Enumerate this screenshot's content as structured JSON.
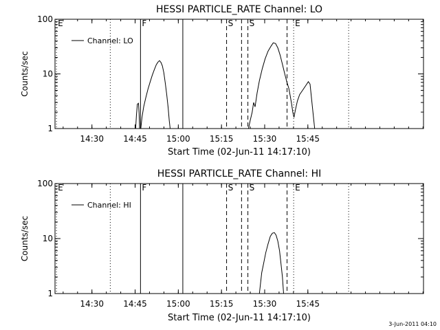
{
  "footer": {
    "timestamp": "3-Jun-2011 04:10"
  },
  "chart_data": [
    {
      "type": "line",
      "title": "HESSI PARTICLE_RATE Channel: LO",
      "xlabel": "Start Time (02-Jun-11 14:17:10)",
      "ylabel": "Counts/sec",
      "x_units": "minutes after 14:17:10",
      "xlim": [
        0,
        128
      ],
      "ylim": [
        1,
        100
      ],
      "log_y": true,
      "x_ticks": [
        {
          "value": 12.83,
          "label": "14:30"
        },
        {
          "value": 27.83,
          "label": "14:45"
        },
        {
          "value": 42.83,
          "label": "15:00"
        },
        {
          "value": 57.83,
          "label": "15:15"
        },
        {
          "value": 72.83,
          "label": "15:30"
        },
        {
          "value": 87.83,
          "label": "15:45"
        }
      ],
      "y_ticks": [
        {
          "value": 1,
          "label": "1"
        },
        {
          "value": 10,
          "label": "10"
        },
        {
          "value": 100,
          "label": "100"
        }
      ],
      "legend": {
        "label": "Channel: LO",
        "position": "top-left"
      },
      "markers": [
        {
          "x": 0.5,
          "style": "dotted",
          "label": "E"
        },
        {
          "x": 19.2,
          "style": "dotted",
          "label": ""
        },
        {
          "x": 29.7,
          "style": "solid",
          "label": "F"
        },
        {
          "x": 44.4,
          "style": "solid",
          "label": ""
        },
        {
          "x": 59.6,
          "style": "dashed",
          "label": "S"
        },
        {
          "x": 64.8,
          "style": "dashed",
          "label": ""
        },
        {
          "x": 67.0,
          "style": "dashed",
          "label": "S"
        },
        {
          "x": 80.6,
          "style": "dashed",
          "label": ""
        },
        {
          "x": 82.9,
          "style": "dotted",
          "label": "E"
        },
        {
          "x": 102.0,
          "style": "dotted",
          "label": ""
        }
      ],
      "series": [
        {
          "values": [
            [
              28.0,
              1
            ],
            [
              28.3,
              1.8
            ],
            [
              28.6,
              2.8
            ],
            [
              29.0,
              2.9
            ],
            [
              29.2,
              1.9
            ],
            [
              29.4,
              1.0
            ],
            [
              29.8,
              1.0
            ],
            [
              30.2,
              1.6
            ],
            [
              30.8,
              2.5
            ],
            [
              31.5,
              3.6
            ],
            [
              32.3,
              5.3
            ],
            [
              33.0,
              7.0
            ],
            [
              33.8,
              9.5
            ],
            [
              34.5,
              12.0
            ],
            [
              35.2,
              14.8
            ],
            [
              35.8,
              16.5
            ],
            [
              36.3,
              17.5
            ],
            [
              36.8,
              16.2
            ],
            [
              37.3,
              14.0
            ],
            [
              37.8,
              10.5
            ],
            [
              38.3,
              6.8
            ],
            [
              38.8,
              4.2
            ],
            [
              39.3,
              2.4
            ],
            [
              39.7,
              1.4
            ],
            [
              40.0,
              1
            ]
          ]
        },
        {
          "values": [
            [
              67.2,
              1
            ],
            [
              67.8,
              1.4
            ],
            [
              68.5,
              2.0
            ],
            [
              69.0,
              3.0
            ],
            [
              69.5,
              2.5
            ],
            [
              70.2,
              4.5
            ],
            [
              71.0,
              7.5
            ],
            [
              72.0,
              12.5
            ],
            [
              73.0,
              19.0
            ],
            [
              74.0,
              26.0
            ],
            [
              75.0,
              32.0
            ],
            [
              75.8,
              37.0
            ],
            [
              76.6,
              36.0
            ],
            [
              77.4,
              30.0
            ],
            [
              78.2,
              22.0
            ],
            [
              79.0,
              15.0
            ],
            [
              79.8,
              10.0
            ],
            [
              80.5,
              7.2
            ],
            [
              81.2,
              5.5
            ],
            [
              81.7,
              4.0
            ],
            [
              82.2,
              2.8
            ],
            [
              82.6,
              2.0
            ],
            [
              83.0,
              1.6
            ],
            [
              83.5,
              2.2
            ],
            [
              84.2,
              3.2
            ],
            [
              85.0,
              4.2
            ],
            [
              86.0,
              5.0
            ],
            [
              87.0,
              6.0
            ],
            [
              88.0,
              7.2
            ],
            [
              88.6,
              6.5
            ],
            [
              89.0,
              4.0
            ],
            [
              89.4,
              2.5
            ],
            [
              89.8,
              1.6
            ],
            [
              90.2,
              1
            ]
          ]
        }
      ]
    },
    {
      "type": "line",
      "title": "HESSI PARTICLE_RATE Channel: HI",
      "xlabel": "Start Time (02-Jun-11 14:17:10)",
      "ylabel": "Counts/sec",
      "x_units": "minutes after 14:17:10",
      "xlim": [
        0,
        128
      ],
      "ylim": [
        1,
        100
      ],
      "log_y": true,
      "x_ticks": [
        {
          "value": 12.83,
          "label": "14:30"
        },
        {
          "value": 27.83,
          "label": "14:45"
        },
        {
          "value": 42.83,
          "label": "15:00"
        },
        {
          "value": 57.83,
          "label": "15:15"
        },
        {
          "value": 72.83,
          "label": "15:30"
        },
        {
          "value": 87.83,
          "label": "15:45"
        }
      ],
      "y_ticks": [
        {
          "value": 1,
          "label": "1"
        },
        {
          "value": 10,
          "label": "10"
        },
        {
          "value": 100,
          "label": "100"
        }
      ],
      "legend": {
        "label": "Channel: HI",
        "position": "top-left"
      },
      "markers": [
        {
          "x": 0.5,
          "style": "dotted",
          "label": "E"
        },
        {
          "x": 19.2,
          "style": "dotted",
          "label": ""
        },
        {
          "x": 29.7,
          "style": "solid",
          "label": "F"
        },
        {
          "x": 44.4,
          "style": "solid",
          "label": ""
        },
        {
          "x": 59.6,
          "style": "dashed",
          "label": "S"
        },
        {
          "x": 64.8,
          "style": "dashed",
          "label": ""
        },
        {
          "x": 67.0,
          "style": "dashed",
          "label": "S"
        },
        {
          "x": 80.6,
          "style": "dashed",
          "label": ""
        },
        {
          "x": 82.9,
          "style": "dotted",
          "label": "E"
        },
        {
          "x": 102.0,
          "style": "dotted",
          "label": ""
        }
      ],
      "series": [
        {
          "values": [
            [
              71.0,
              1
            ],
            [
              71.3,
              1.4
            ],
            [
              71.8,
              2.4
            ],
            [
              72.5,
              3.6
            ],
            [
              73.2,
              5.5
            ],
            [
              74.0,
              8.0
            ],
            [
              74.8,
              11.0
            ],
            [
              75.5,
              12.5
            ],
            [
              76.2,
              12.8
            ],
            [
              76.8,
              11.5
            ],
            [
              77.4,
              9.0
            ],
            [
              78.0,
              6.0
            ],
            [
              78.5,
              3.5
            ],
            [
              79.0,
              2.0
            ],
            [
              79.4,
              1
            ]
          ]
        }
      ]
    }
  ]
}
